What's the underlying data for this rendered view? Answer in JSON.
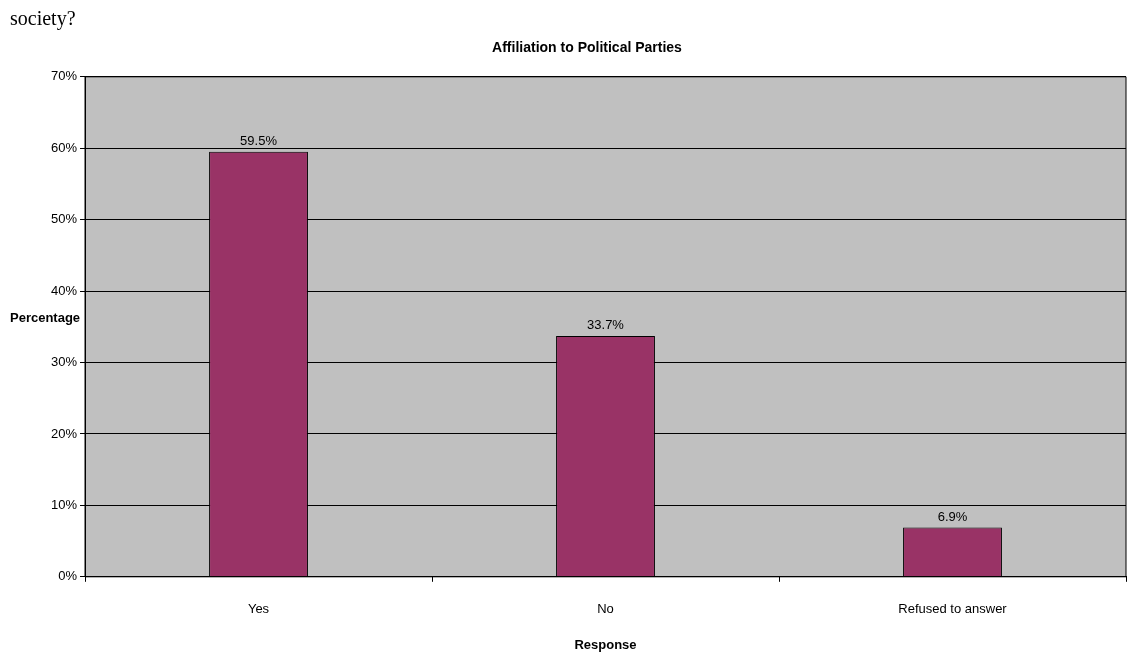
{
  "chart_data": {
    "type": "bar",
    "title": "Affiliation to Political Parties",
    "xlabel": "Response",
    "ylabel": "Percentage",
    "annotations": [
      "society?"
    ],
    "categories": [
      "Yes",
      "No",
      "Refused to answer"
    ],
    "values": [
      59.5,
      33.7,
      6.9
    ],
    "value_labels": [
      "59.5%",
      "33.7%",
      "6.9%"
    ],
    "color": "#993366",
    "ylim": [
      0,
      70
    ],
    "yticks": [
      {
        "value": 0,
        "label": "0%"
      },
      {
        "value": 10,
        "label": "10%"
      },
      {
        "value": 20,
        "label": "20%"
      },
      {
        "value": 30,
        "label": "30%"
      },
      {
        "value": 40,
        "label": "40%"
      },
      {
        "value": 50,
        "label": "50%"
      },
      {
        "value": 60,
        "label": "60%"
      },
      {
        "value": 70,
        "label": "70%"
      }
    ],
    "grid": "y",
    "legend": false
  }
}
